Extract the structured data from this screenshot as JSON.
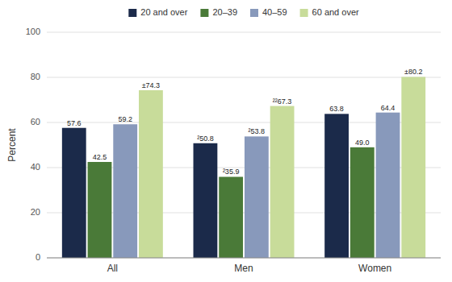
{
  "chart_data": {
    "type": "bar",
    "ylabel": "Percent",
    "categories": [
      "All",
      "Men",
      "Women"
    ],
    "series": [
      {
        "name": "20 and over",
        "color": "#1b2a4a",
        "values": [
          57.6,
          50.8,
          63.8
        ],
        "value_labels": [
          "57.6",
          "²50.8",
          "63.8"
        ]
      },
      {
        "name": "20–39",
        "color": "#4a7a38",
        "values": [
          42.5,
          35.9,
          49.0
        ],
        "value_labels": [
          "42.5",
          "²35.9",
          "49.0"
        ]
      },
      {
        "name": "40–59",
        "color": "#8899bb",
        "values": [
          59.2,
          53.8,
          64.4
        ],
        "value_labels": [
          "59.2",
          "²53.8",
          "64.4"
        ]
      },
      {
        "name": "60 and over",
        "color": "#c8dc9a",
        "values": [
          74.3,
          67.3,
          80.2
        ],
        "value_labels": [
          "±74.3",
          "²²67.3",
          "±80.2"
        ]
      }
    ],
    "ylim": [
      0,
      100
    ],
    "yticks": [
      0,
      20,
      40,
      60,
      80,
      100
    ],
    "grid": true,
    "legend": "top",
    "data_labels": true
  }
}
